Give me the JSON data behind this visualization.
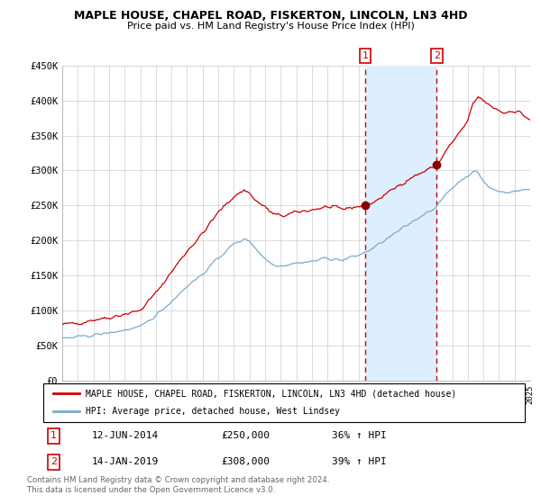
{
  "title": "MAPLE HOUSE, CHAPEL ROAD, FISKERTON, LINCOLN, LN3 4HD",
  "subtitle": "Price paid vs. HM Land Registry's House Price Index (HPI)",
  "x_start_year": 1995,
  "x_end_year": 2025,
  "y_min": 0,
  "y_max": 450000,
  "y_ticks": [
    0,
    50000,
    100000,
    150000,
    200000,
    250000,
    300000,
    350000,
    400000,
    450000
  ],
  "y_tick_labels": [
    "£0",
    "£50K",
    "£100K",
    "£150K",
    "£200K",
    "£250K",
    "£300K",
    "£350K",
    "£400K",
    "£450K"
  ],
  "red_line_color": "#cc0000",
  "blue_line_color": "#7aabcc",
  "shaded_region_color": "#ddeeff",
  "marker1_date_idx": 233,
  "marker1_value": 250000,
  "marker1_label": "1",
  "marker1_date_str": "12-JUN-2014",
  "marker1_price_str": "£250,000",
  "marker1_hpi_str": "36% ↑ HPI",
  "marker2_date_idx": 288,
  "marker2_value": 308000,
  "marker2_label": "2",
  "marker2_date_str": "14-JAN-2019",
  "marker2_price_str": "£308,000",
  "marker2_hpi_str": "39% ↑ HPI",
  "legend_line1": "MAPLE HOUSE, CHAPEL ROAD, FISKERTON, LINCOLN, LN3 4HD (detached house)",
  "legend_line2": "HPI: Average price, detached house, West Lindsey",
  "footnote1": "Contains HM Land Registry data © Crown copyright and database right 2024.",
  "footnote2": "This data is licensed under the Open Government Licence v3.0.",
  "background_color": "#ffffff",
  "grid_color": "#cccccc"
}
